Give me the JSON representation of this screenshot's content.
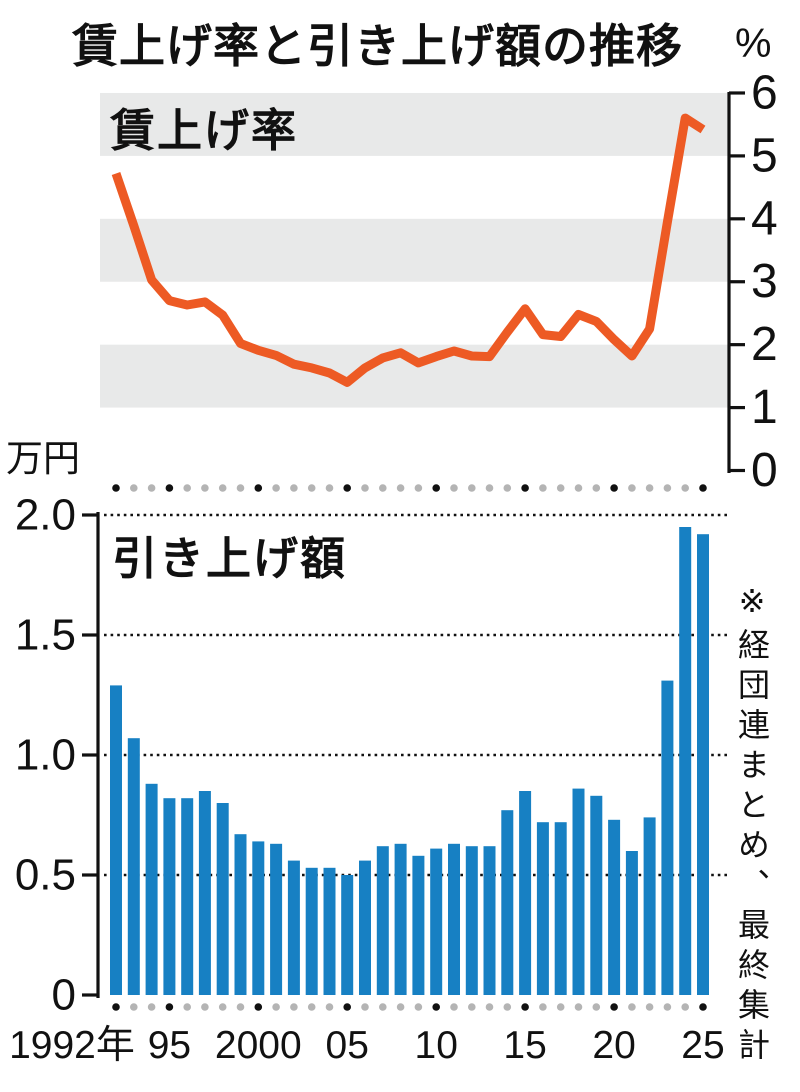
{
  "header": {
    "title": "賃上げ率と引き上げ額の推移"
  },
  "note": "※経団連まとめ、最終集計",
  "colors": {
    "line": "#ed5a24",
    "bar": "#1780c3",
    "band": "#e8e9e9",
    "axis": "#111111",
    "grid": "#111111",
    "dot_major": "#111111",
    "dot_minor": "#b4b4b4",
    "text": "#111111"
  },
  "x_axis": {
    "tick_labels": [
      {
        "year": 1992,
        "label": "1992年"
      },
      {
        "year": 1995,
        "label": "95"
      },
      {
        "year": 2000,
        "label": "2000"
      },
      {
        "year": 2005,
        "label": "05"
      },
      {
        "year": 2010,
        "label": "10"
      },
      {
        "year": 2015,
        "label": "15"
      },
      {
        "year": 2020,
        "label": "20"
      },
      {
        "year": 2025,
        "label": "25"
      }
    ],
    "marker_years": [
      1992,
      1995,
      2000,
      2005,
      2010,
      2015,
      2020,
      2025
    ]
  },
  "chart_data": [
    {
      "type": "line",
      "title": "賃上げ率",
      "unit": "%",
      "ylim": [
        0,
        6
      ],
      "y_ticks": [
        "6",
        "5",
        "4",
        "3",
        "2",
        "1",
        "0"
      ],
      "gray_bands": [
        [
          5,
          6
        ],
        [
          3,
          4
        ],
        [
          1,
          2
        ]
      ],
      "grid": false,
      "legend_position": "inside-top-left",
      "years": [
        1992,
        1993,
        1994,
        1995,
        1996,
        1997,
        1998,
        1999,
        2000,
        2001,
        2002,
        2003,
        2004,
        2005,
        2006,
        2007,
        2008,
        2009,
        2010,
        2011,
        2012,
        2013,
        2014,
        2015,
        2016,
        2017,
        2018,
        2019,
        2020,
        2021,
        2022,
        2023,
        2024,
        2025
      ],
      "values": [
        4.72,
        3.89,
        3.03,
        2.7,
        2.63,
        2.68,
        2.47,
        2.02,
        1.91,
        1.83,
        1.69,
        1.63,
        1.55,
        1.4,
        1.63,
        1.79,
        1.87,
        1.71,
        1.81,
        1.9,
        1.82,
        1.81,
        2.2,
        2.57,
        2.16,
        2.13,
        2.48,
        2.37,
        2.08,
        1.82,
        2.25,
        3.95,
        5.6,
        5.42
      ]
    },
    {
      "type": "bar",
      "title": "引き上げ額",
      "unit": "万円",
      "ylim": [
        0,
        2.0
      ],
      "y_ticks": [
        "2.0",
        "1.5",
        "1.0",
        "0.5",
        "0"
      ],
      "grid_values": [
        2.0,
        1.5,
        1.0,
        0.5
      ],
      "grid": true,
      "legend_position": "inside-top-left",
      "years": [
        1992,
        1993,
        1994,
        1995,
        1996,
        1997,
        1998,
        1999,
        2000,
        2001,
        2002,
        2003,
        2004,
        2005,
        2006,
        2007,
        2008,
        2009,
        2010,
        2011,
        2012,
        2013,
        2014,
        2015,
        2016,
        2017,
        2018,
        2019,
        2020,
        2021,
        2022,
        2023,
        2024,
        2025
      ],
      "values": [
        1.29,
        1.07,
        0.88,
        0.82,
        0.82,
        0.85,
        0.8,
        0.67,
        0.64,
        0.63,
        0.56,
        0.53,
        0.53,
        0.5,
        0.56,
        0.62,
        0.63,
        0.58,
        0.61,
        0.63,
        0.62,
        0.62,
        0.77,
        0.85,
        0.72,
        0.72,
        0.86,
        0.83,
        0.73,
        0.6,
        0.74,
        1.31,
        1.95,
        1.92
      ]
    }
  ]
}
